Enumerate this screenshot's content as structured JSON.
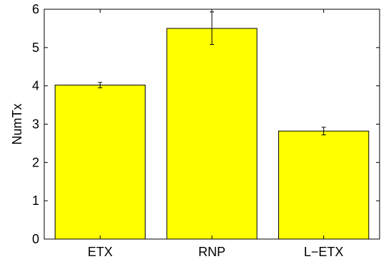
{
  "chart_data": {
    "type": "bar",
    "categories": [
      "ETX",
      "RNP",
      "L−ETX"
    ],
    "values": [
      4.02,
      5.5,
      2.82
    ],
    "error_low": [
      3.95,
      5.08,
      2.72
    ],
    "error_high": [
      4.09,
      5.93,
      2.92
    ],
    "title": "",
    "xlabel": "",
    "ylabel": "NumTx",
    "ylim": [
      0,
      6
    ],
    "yticks": [
      0,
      1,
      2,
      3,
      4,
      5,
      6
    ],
    "grid": false,
    "bar_color": "#ffff00",
    "edge_color": "#000000"
  }
}
